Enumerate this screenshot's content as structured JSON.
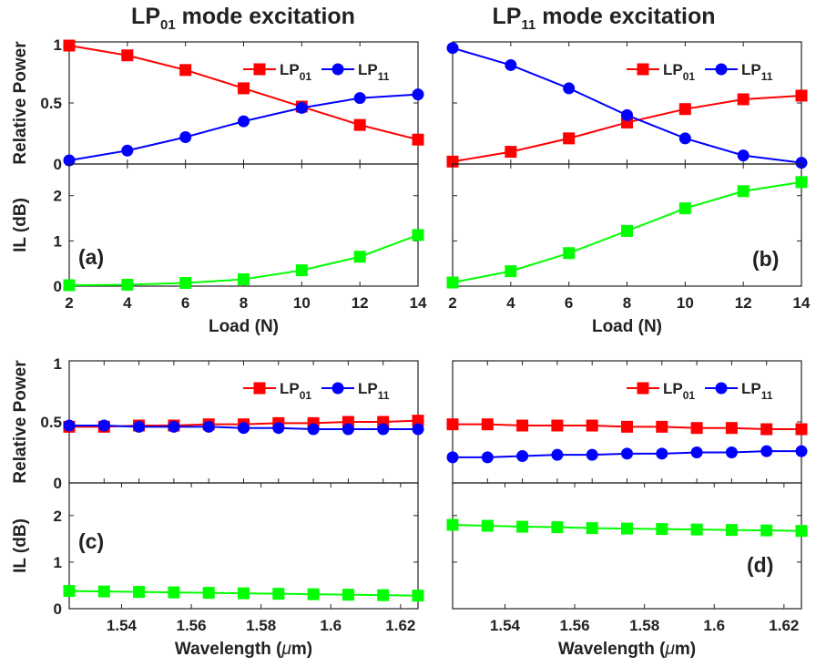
{
  "figure": {
    "titles": [
      {
        "main": "LP",
        "sub": "01",
        "rest": " mode excitation"
      },
      {
        "main": "LP",
        "sub": "11",
        "rest": " mode excitation"
      }
    ]
  },
  "colors": {
    "lp01": "#ff0000",
    "lp11": "#0000ff",
    "il": "#00ff00",
    "axis": "#222222"
  },
  "legend_entries": [
    {
      "main": "LP",
      "sub": "01"
    },
    {
      "main": "LP",
      "sub": "11"
    }
  ],
  "chart_data": [
    {
      "id": "a-top",
      "type": "line",
      "panel": "(a)",
      "ylabel": "Relative Power",
      "ylim": [
        0,
        1
      ],
      "yticks": [
        "0",
        "0.5",
        "1"
      ],
      "x": [
        2,
        4,
        6,
        8,
        10,
        12,
        14
      ],
      "xlim": [
        2,
        14
      ],
      "legend": "top-right",
      "series": [
        {
          "name": "LP01",
          "color": "lp01",
          "marker": "square",
          "values": [
            0.97,
            0.89,
            0.77,
            0.62,
            0.47,
            0.32,
            0.2
          ]
        },
        {
          "name": "LP11",
          "color": "lp11",
          "marker": "circle",
          "values": [
            0.03,
            0.11,
            0.22,
            0.35,
            0.46,
            0.54,
            0.57
          ]
        }
      ]
    },
    {
      "id": "a-bot",
      "type": "line",
      "panel": "(a)",
      "ylabel": "IL (dB)",
      "ylim": [
        0,
        2.7
      ],
      "yticks": [
        "0",
        "1",
        "2"
      ],
      "xlabel": "Load (N)",
      "x": [
        2,
        4,
        6,
        8,
        10,
        12,
        14
      ],
      "xlim": [
        2,
        14
      ],
      "xticks": [
        "2",
        "4",
        "6",
        "8",
        "10",
        "12",
        "14"
      ],
      "series": [
        {
          "color": "il",
          "marker": "square",
          "values": [
            0.02,
            0.03,
            0.07,
            0.15,
            0.35,
            0.65,
            1.13
          ]
        }
      ]
    },
    {
      "id": "b-top",
      "type": "line",
      "panel": "(b)",
      "ylabel": "",
      "ylim": [
        0,
        1
      ],
      "x": [
        2,
        4,
        6,
        8,
        10,
        12,
        14
      ],
      "xlim": [
        2,
        14
      ],
      "legend": "top-right",
      "series": [
        {
          "name": "LP01",
          "color": "lp01",
          "marker": "square",
          "values": [
            0.02,
            0.1,
            0.21,
            0.34,
            0.45,
            0.53,
            0.56
          ]
        },
        {
          "name": "LP11",
          "color": "lp11",
          "marker": "circle",
          "values": [
            0.95,
            0.81,
            0.62,
            0.4,
            0.21,
            0.07,
            0.01
          ]
        }
      ]
    },
    {
      "id": "b-bot",
      "type": "line",
      "panel": "(b)",
      "ylabel": "",
      "ylim": [
        0,
        2.7
      ],
      "xlabel": "Load (N)",
      "x": [
        2,
        4,
        6,
        8,
        10,
        12,
        14
      ],
      "xlim": [
        2,
        14
      ],
      "xticks": [
        "2",
        "4",
        "6",
        "8",
        "10",
        "12",
        "14"
      ],
      "series": [
        {
          "color": "il",
          "marker": "square",
          "values": [
            0.08,
            0.33,
            0.73,
            1.22,
            1.72,
            2.1,
            2.3
          ]
        }
      ]
    },
    {
      "id": "c-top",
      "type": "line",
      "panel": "(c)",
      "ylabel": "Relative Power",
      "ylim": [
        0,
        1
      ],
      "yticks": [
        "0",
        "0.5",
        "1"
      ],
      "x": [
        1.525,
        1.535,
        1.545,
        1.555,
        1.565,
        1.575,
        1.585,
        1.595,
        1.605,
        1.615,
        1.625
      ],
      "xlim": [
        1.525,
        1.625
      ],
      "legend": "top-right",
      "series": [
        {
          "name": "LP01",
          "color": "lp01",
          "marker": "square",
          "values": [
            0.46,
            0.46,
            0.47,
            0.47,
            0.48,
            0.48,
            0.49,
            0.49,
            0.5,
            0.5,
            0.51
          ]
        },
        {
          "name": "LP11",
          "color": "lp11",
          "marker": "circle",
          "values": [
            0.47,
            0.47,
            0.46,
            0.46,
            0.46,
            0.45,
            0.45,
            0.44,
            0.44,
            0.44,
            0.44
          ]
        }
      ]
    },
    {
      "id": "c-bot",
      "type": "line",
      "panel": "(c)",
      "ylabel": "IL (dB)",
      "ylim": [
        0,
        2.7
      ],
      "yticks": [
        "0",
        "1",
        "2"
      ],
      "xlabel": "Wavelength (",
      "xlabel_mu": "μ",
      "xlabel_end": "m)",
      "x": [
        1.525,
        1.535,
        1.545,
        1.555,
        1.565,
        1.575,
        1.585,
        1.595,
        1.605,
        1.615,
        1.625
      ],
      "xlim": [
        1.525,
        1.625
      ],
      "xtick_values": [
        1.54,
        1.56,
        1.58,
        1.6,
        1.62
      ],
      "xticks": [
        "1.54",
        "1.56",
        "1.58",
        "1.6",
        "1.62"
      ],
      "series": [
        {
          "color": "il",
          "marker": "square",
          "values": [
            0.38,
            0.37,
            0.36,
            0.35,
            0.34,
            0.33,
            0.32,
            0.31,
            0.3,
            0.29,
            0.28
          ]
        }
      ]
    },
    {
      "id": "d-top",
      "type": "line",
      "panel": "(d)",
      "ylabel": "",
      "ylim": [
        0,
        1
      ],
      "x": [
        1.525,
        1.535,
        1.545,
        1.555,
        1.565,
        1.575,
        1.585,
        1.595,
        1.605,
        1.615,
        1.625
      ],
      "xlim": [
        1.525,
        1.625
      ],
      "legend": "top-right",
      "series": [
        {
          "name": "LP01",
          "color": "lp01",
          "marker": "square",
          "values": [
            0.48,
            0.48,
            0.47,
            0.47,
            0.47,
            0.46,
            0.46,
            0.45,
            0.45,
            0.44,
            0.44
          ]
        },
        {
          "name": "LP11",
          "color": "lp11",
          "marker": "circle",
          "values": [
            0.21,
            0.21,
            0.22,
            0.23,
            0.23,
            0.24,
            0.24,
            0.25,
            0.25,
            0.26,
            0.26
          ]
        }
      ]
    },
    {
      "id": "d-bot",
      "type": "line",
      "panel": "(d)",
      "ylabel": "",
      "ylim": [
        0,
        2.7
      ],
      "xlabel": "Wavelength (",
      "xlabel_mu": "μ",
      "xlabel_end": "m)",
      "x": [
        1.525,
        1.535,
        1.545,
        1.555,
        1.565,
        1.575,
        1.585,
        1.595,
        1.605,
        1.615,
        1.625
      ],
      "xlim": [
        1.525,
        1.625
      ],
      "xtick_values": [
        1.54,
        1.56,
        1.58,
        1.6,
        1.62
      ],
      "xticks": [
        "1.54",
        "1.56",
        "1.58",
        "1.6",
        "1.62"
      ],
      "series": [
        {
          "color": "il",
          "marker": "square",
          "values": [
            1.8,
            1.78,
            1.76,
            1.75,
            1.73,
            1.72,
            1.71,
            1.7,
            1.69,
            1.68,
            1.67
          ]
        }
      ]
    }
  ]
}
